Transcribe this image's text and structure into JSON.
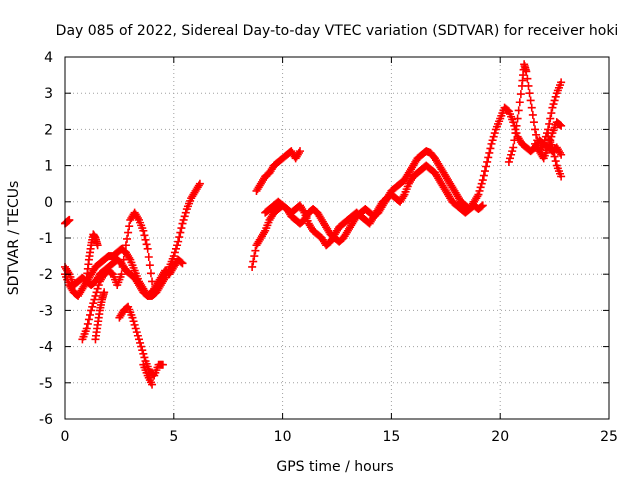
{
  "chart_data": {
    "type": "scatter",
    "title": "Day 085 of 2022, Sidereal Day-to-day VTEC variation (SDTVAR) for receiver hoki",
    "xlabel": "GPS time / hours",
    "ylabel": "SDTVAR / TECUs",
    "xlim": [
      0,
      25
    ],
    "ylim": [
      -6,
      4
    ],
    "xticks": [
      "0",
      "5",
      "10",
      "15",
      "20",
      "25"
    ],
    "yticks": [
      "-6",
      "-5",
      "-4",
      "-3",
      "-2",
      "-1",
      "0",
      "1",
      "2",
      "3",
      "4"
    ],
    "grid": true,
    "marker": "+",
    "color": "#ff0000",
    "series": [
      {
        "name": "trace-a",
        "x": [
          0.0,
          0.1,
          0.2
        ],
        "y": [
          -0.6,
          -0.55,
          -0.5
        ]
      },
      {
        "name": "trace-b",
        "x": [
          0.0,
          0.2,
          0.4,
          0.6,
          0.8,
          1.0,
          1.2,
          1.4,
          1.6,
          1.8,
          2.0,
          2.2,
          2.4,
          2.6,
          2.8,
          3.0,
          3.2,
          3.4,
          3.6,
          3.8,
          4.0,
          4.2,
          4.4,
          4.6,
          4.8,
          5.0,
          5.2,
          5.4,
          5.6,
          5.8,
          6.0,
          6.2
        ],
        "y": [
          -1.8,
          -2.0,
          -2.3,
          -2.2,
          -2.1,
          -2.2,
          -2.3,
          -2.2,
          -2.0,
          -1.9,
          -1.8,
          -1.7,
          -1.6,
          -1.7,
          -1.9,
          -2.0,
          -2.1,
          -2.3,
          -2.5,
          -2.6,
          -2.6,
          -2.5,
          -2.3,
          -2.1,
          -1.8,
          -1.5,
          -1.1,
          -0.6,
          -0.2,
          0.1,
          0.3,
          0.5
        ]
      },
      {
        "name": "trace-c",
        "x": [
          0.0,
          0.2,
          0.4,
          0.6,
          0.8,
          1.0,
          1.2,
          1.4,
          1.6,
          1.8,
          2.0,
          2.2,
          2.4,
          2.6,
          2.8,
          3.0,
          3.2,
          3.4,
          3.6,
          3.8,
          4.0,
          4.2,
          4.4,
          4.6,
          4.8,
          5.0,
          5.2,
          5.4
        ],
        "y": [
          -2.0,
          -2.3,
          -2.5,
          -2.6,
          -2.4,
          -2.2,
          -2.0,
          -1.8,
          -1.7,
          -1.6,
          -1.5,
          -1.5,
          -1.4,
          -1.3,
          -1.4,
          -1.6,
          -1.9,
          -2.2,
          -2.4,
          -2.6,
          -2.5,
          -2.3,
          -2.1,
          -1.9,
          -2.0,
          -1.8,
          -1.6,
          -1.7
        ]
      },
      {
        "name": "trace-d",
        "x": [
          0.8,
          1.0,
          1.2,
          1.4,
          1.6,
          1.8,
          2.0,
          2.2,
          2.4,
          2.6,
          2.8,
          3.0,
          3.2,
          3.4,
          3.6,
          3.8,
          4.0
        ],
        "y": [
          -3.8,
          -3.5,
          -3.0,
          -2.6,
          -2.2,
          -2.0,
          -1.9,
          -2.0,
          -2.3,
          -2.0,
          -1.2,
          -0.5,
          -0.3,
          -0.5,
          -0.8,
          -1.3,
          -2.2
        ]
      },
      {
        "name": "trace-e",
        "x": [
          1.0,
          1.1,
          1.2,
          1.3,
          1.4,
          1.5
        ],
        "y": [
          -2.1,
          -1.6,
          -1.2,
          -0.9,
          -1.0,
          -1.2
        ]
      },
      {
        "name": "trace-f",
        "x": [
          1.4,
          1.5,
          1.6,
          1.7,
          1.8
        ],
        "y": [
          -3.8,
          -3.4,
          -3.0,
          -2.7,
          -2.5
        ]
      },
      {
        "name": "trace-g",
        "x": [
          2.5,
          2.7,
          2.9,
          3.1,
          3.3,
          3.5,
          3.7,
          3.9,
          4.1,
          4.3,
          4.5
        ],
        "y": [
          -3.2,
          -3.0,
          -2.9,
          -3.2,
          -3.6,
          -4.0,
          -4.4,
          -4.7,
          -4.8,
          -4.5,
          -4.5
        ]
      },
      {
        "name": "trace-h",
        "x": [
          3.6,
          3.8,
          4.0
        ],
        "y": [
          -4.5,
          -4.8,
          -5.05
        ]
      },
      {
        "name": "trace-i",
        "x": [
          8.6,
          8.8,
          9.0,
          9.2,
          9.4,
          9.6,
          9.8,
          10.0,
          10.2,
          10.4,
          10.6,
          10.8,
          11.0,
          11.2,
          11.4,
          11.6,
          11.8,
          12.0,
          12.2,
          12.4,
          12.6,
          12.8,
          13.0,
          13.2,
          13.4,
          13.6,
          13.8,
          14.0,
          14.2,
          14.4,
          14.6,
          14.8,
          15.0,
          15.2,
          15.4,
          15.6,
          15.8,
          16.0,
          16.2,
          16.4,
          16.6,
          16.8,
          17.0,
          17.2,
          17.4,
          17.6,
          17.8,
          18.0,
          18.2,
          18.4,
          18.6,
          18.8,
          19.0,
          19.2,
          19.4,
          19.6,
          19.8,
          20.0,
          20.2,
          20.4,
          20.6,
          20.8,
          21.0,
          21.2,
          21.4,
          21.6,
          21.8,
          22.0,
          22.2,
          22.4,
          22.6,
          22.8
        ],
        "y": [
          -1.8,
          -1.2,
          -1.0,
          -0.8,
          -0.5,
          -0.3,
          -0.2,
          -0.1,
          -0.2,
          -0.3,
          -0.2,
          -0.1,
          -0.3,
          -0.6,
          -0.8,
          -0.9,
          -1.0,
          -1.2,
          -1.1,
          -0.9,
          -0.7,
          -0.6,
          -0.5,
          -0.4,
          -0.3,
          -0.4,
          -0.5,
          -0.6,
          -0.4,
          -0.2,
          0.0,
          0.1,
          0.2,
          0.1,
          0.0,
          0.2,
          0.5,
          0.7,
          0.8,
          0.9,
          1.0,
          0.9,
          0.8,
          0.6,
          0.4,
          0.2,
          0.0,
          -0.1,
          -0.2,
          -0.3,
          -0.2,
          0.0,
          0.2,
          0.6,
          1.1,
          1.6,
          2.0,
          2.3,
          2.6,
          2.5,
          2.2,
          1.8,
          1.6,
          1.5,
          1.4,
          1.5,
          1.7,
          1.6,
          1.5,
          1.4,
          1.5,
          1.3
        ]
      },
      {
        "name": "trace-j",
        "x": [
          8.8,
          9.0,
          9.2,
          9.4,
          9.6,
          9.8,
          10.0,
          10.2,
          10.4,
          10.6,
          10.8
        ],
        "y": [
          0.3,
          0.5,
          0.7,
          0.8,
          1.0,
          1.1,
          1.2,
          1.3,
          1.4,
          1.2,
          1.4
        ]
      },
      {
        "name": "trace-k",
        "x": [
          9.2,
          9.4,
          9.6,
          9.8,
          10.0,
          10.2,
          10.4,
          10.6,
          10.8,
          11.0,
          11.2,
          11.4,
          11.6,
          11.8,
          12.0,
          12.2,
          12.4,
          12.6,
          12.8,
          13.0,
          13.2,
          13.4,
          13.6,
          13.8,
          14.0,
          14.2,
          14.4,
          14.6,
          14.8,
          15.0,
          15.2,
          15.4,
          15.6,
          15.8,
          16.0,
          16.2,
          16.4,
          16.6,
          16.8,
          17.0,
          17.2,
          17.4,
          17.6,
          17.8,
          18.0,
          18.2,
          18.4,
          18.6,
          18.8,
          19.0,
          19.2
        ],
        "y": [
          -0.3,
          -0.2,
          -0.1,
          0.0,
          -0.1,
          -0.2,
          -0.4,
          -0.5,
          -0.6,
          -0.5,
          -0.3,
          -0.2,
          -0.3,
          -0.5,
          -0.7,
          -0.9,
          -1.0,
          -1.1,
          -1.0,
          -0.8,
          -0.6,
          -0.4,
          -0.3,
          -0.2,
          -0.3,
          -0.4,
          -0.3,
          -0.1,
          0.1,
          0.3,
          0.4,
          0.5,
          0.6,
          0.8,
          1.0,
          1.2,
          1.3,
          1.4,
          1.35,
          1.2,
          1.0,
          0.8,
          0.6,
          0.4,
          0.2,
          0.0,
          -0.1,
          -0.2,
          -0.1,
          -0.2,
          -0.1
        ]
      },
      {
        "name": "trace-l",
        "x": [
          20.4,
          20.6,
          20.8,
          21.0,
          21.1,
          21.2,
          21.4,
          21.6,
          21.8,
          22.0,
          22.2,
          22.4,
          22.6,
          22.8
        ],
        "y": [
          1.1,
          1.5,
          2.3,
          3.2,
          3.8,
          3.6,
          2.8,
          2.0,
          1.4,
          1.6,
          2.0,
          2.6,
          3.0,
          3.3
        ]
      },
      {
        "name": "trace-m",
        "x": [
          21.6,
          21.8,
          22.0,
          22.2,
          22.4,
          22.6,
          22.8
        ],
        "y": [
          1.6,
          1.4,
          1.2,
          1.5,
          1.9,
          2.2,
          2.1
        ]
      },
      {
        "name": "trace-n",
        "x": [
          22.2,
          22.4,
          22.6,
          22.8
        ],
        "y": [
          1.8,
          1.5,
          1.0,
          0.7
        ]
      }
    ]
  }
}
